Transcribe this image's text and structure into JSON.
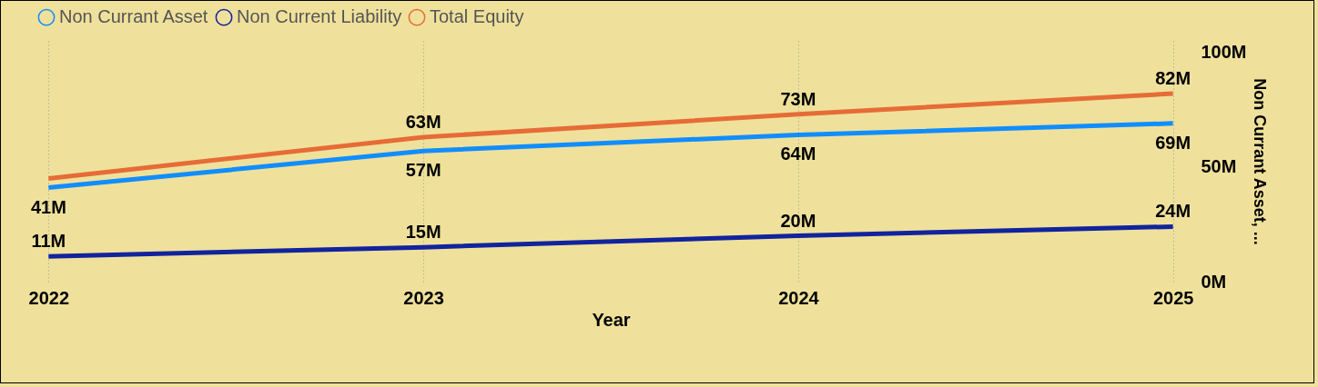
{
  "chart_data": {
    "type": "line",
    "xlabel": "Year",
    "ylabel": "Non Currant Asset, ...",
    "categories": [
      "2022",
      "2023",
      "2024",
      "2025"
    ],
    "series": [
      {
        "name": "Non Currant Asset",
        "color": "#118dff",
        "values": [
          41,
          57,
          64,
          69
        ],
        "value_labels": [
          "41M",
          "57M",
          "64M",
          "69M"
        ]
      },
      {
        "name": "Non Current Liability",
        "color": "#12239e",
        "values": [
          11,
          15,
          20,
          24
        ],
        "value_labels": [
          "11M",
          "15M",
          "20M",
          "24M"
        ]
      },
      {
        "name": "Total Equity",
        "color": "#e66c37",
        "values": [
          45,
          63,
          73,
          82
        ],
        "value_labels": [
          null,
          "63M",
          "73M",
          "82M"
        ]
      }
    ],
    "ylim": [
      0,
      105
    ],
    "yticks": [
      {
        "value": 0,
        "label": "0M"
      },
      {
        "value": 50,
        "label": "50M"
      },
      {
        "value": 100,
        "label": "100M"
      }
    ],
    "grid": "x",
    "legend": "top left",
    "marker": "none",
    "line_style": "solid"
  }
}
